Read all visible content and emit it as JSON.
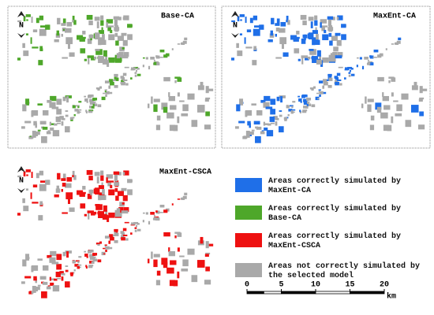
{
  "north_label": "N",
  "panels": [
    {
      "label": "Base-CA",
      "color": "#4ea72a"
    },
    {
      "label": "MaxEnt-CA",
      "color": "#1f6fe8"
    },
    {
      "label": "MaxEnt-CSCA",
      "color": "#ee1111"
    }
  ],
  "legend": [
    {
      "label": "Areas correctly simulated by MaxEnt-CA",
      "color": "#1f6fe8"
    },
    {
      "label": "Areas correctly simulated by Base-CA",
      "color": "#4ea72a"
    },
    {
      "label": "Areas correctly simulated by MaxEnt-CSCA",
      "color": "#ee1111"
    },
    {
      "label": "Areas not correctly simulated by the selected model",
      "color": "#a9a9a9"
    }
  ],
  "scale_bar": {
    "ticks": [
      0,
      5,
      10,
      15,
      20
    ],
    "unit": "km"
  }
}
